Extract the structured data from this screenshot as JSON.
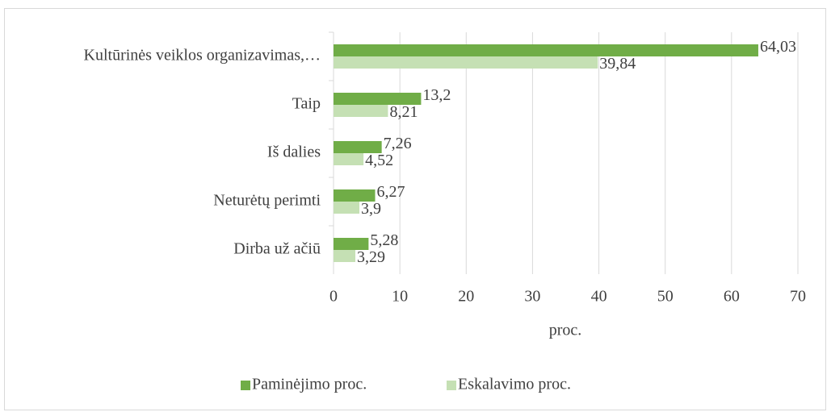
{
  "chart_data": {
    "type": "hbar",
    "categories": [
      "Kultūrinės veiklos organizavimas,…",
      "Taip",
      "Iš dalies",
      "Neturėtų perimti",
      "Dirba už ačiū"
    ],
    "series": [
      {
        "name": "Paminėjimo proc.",
        "color": "#70ad47",
        "values": [
          64.03,
          13.2,
          7.26,
          6.27,
          5.28
        ],
        "value_labels": [
          "64,03",
          "13,2",
          "7,26",
          "6,27",
          "5,28"
        ]
      },
      {
        "name": "Eskalavimo proc.",
        "color": "#c5e0b4",
        "values": [
          39.84,
          8.21,
          4.52,
          3.9,
          3.29
        ],
        "value_labels": [
          "39,84",
          "8,21",
          "4,52",
          "3,9",
          "3,29"
        ]
      }
    ],
    "xlabel": "proc.",
    "xlim": [
      0,
      70
    ],
    "xticks": [
      0,
      10,
      20,
      30,
      40,
      50,
      60,
      70
    ],
    "grid": true,
    "legend": "bottom"
  }
}
